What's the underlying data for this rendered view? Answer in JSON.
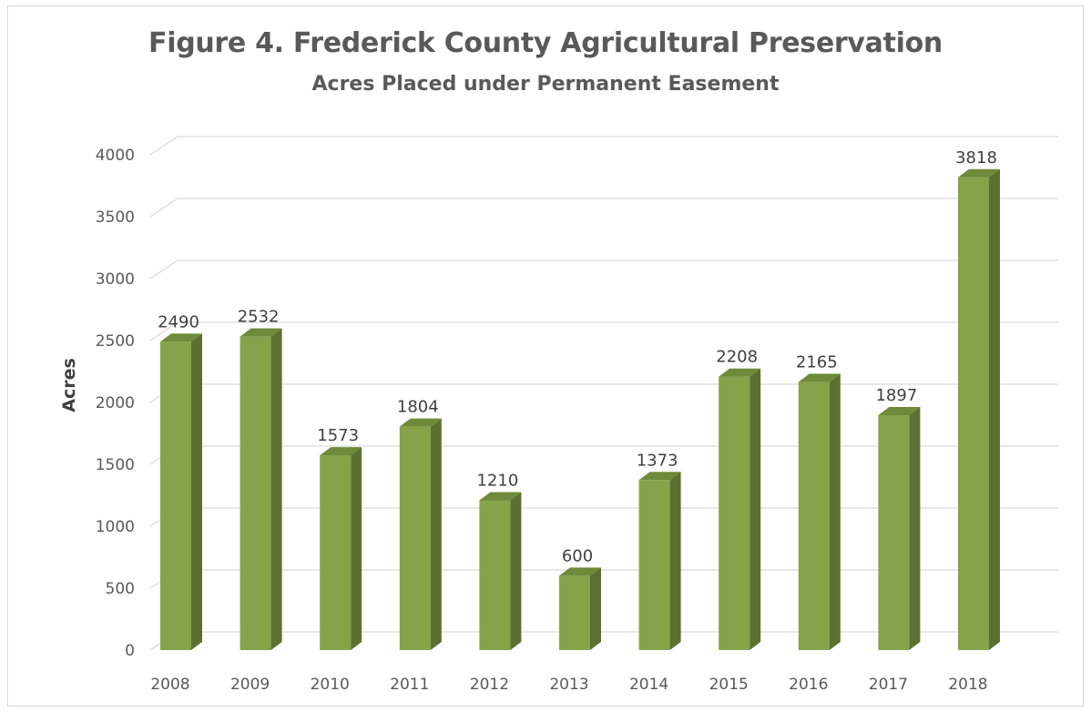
{
  "chart_data": {
    "type": "bar",
    "title": "Figure 4. Frederick County Agricultural Preservation",
    "subtitle": "Acres Placed under Permanent Easement",
    "xlabel": "",
    "ylabel": "Acres",
    "categories": [
      "2008",
      "2009",
      "2010",
      "2011",
      "2012",
      "2013",
      "2014",
      "2015",
      "2016",
      "2017",
      "2018"
    ],
    "values": [
      2490,
      2532,
      1573,
      1804,
      1210,
      600,
      1373,
      2208,
      2165,
      1897,
      3818
    ],
    "data_labels": [
      "2490",
      "2532",
      "1573",
      "1804",
      "1210",
      "600",
      "1373",
      "2208",
      "2165",
      "1897",
      "3818"
    ],
    "ylim": [
      0,
      4000
    ],
    "yticks": [
      0,
      500,
      1000,
      1500,
      2000,
      2500,
      3000,
      3500,
      4000
    ],
    "grid": true,
    "legend": "none",
    "style": "3d-column",
    "colors": {
      "bar_front": "#86a34a",
      "bar_side": "#5c7031",
      "bar_top": "#6e8a3a",
      "grid": "#d9d9d9",
      "text": "#595959"
    }
  }
}
